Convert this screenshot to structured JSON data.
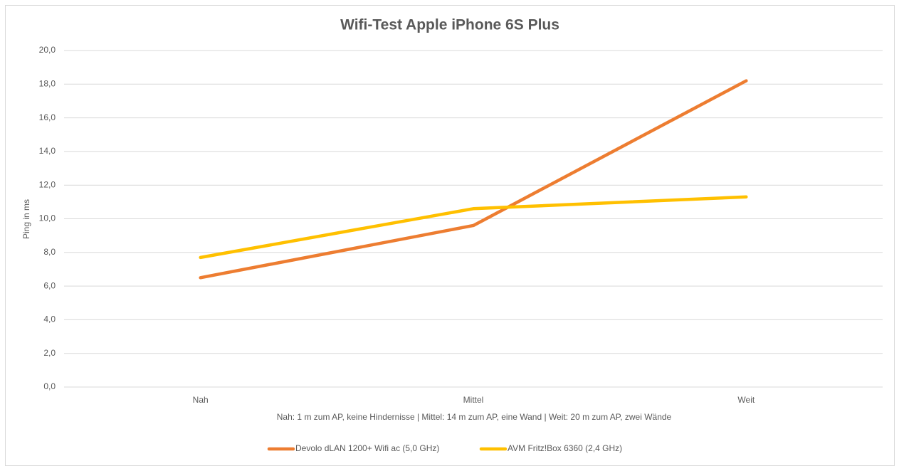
{
  "chart_data": {
    "type": "line",
    "title": "Wifi-Test Apple iPhone 6S Plus",
    "x_label": "Nah: 1 m zum AP, keine Hindernisse | Mittel: 14 m zum AP, eine Wand | Weit: 20 m zum AP, zwei Wände",
    "y_label": "Ping in ms",
    "categories": [
      "Nah",
      "Mittel",
      "Weit"
    ],
    "series": [
      {
        "name": "Devolo dLAN 1200+ Wifi ac (5,0 GHz)",
        "color": "#ed7d31",
        "values": [
          6.5,
          9.6,
          18.2
        ]
      },
      {
        "name": "AVM Fritz!Box 6360 (2,4 GHz)",
        "color": "#ffc000",
        "values": [
          7.7,
          10.6,
          11.3
        ]
      }
    ],
    "ylim": [
      0,
      20
    ],
    "yticks": [
      {
        "value": 0,
        "label": "0,0"
      },
      {
        "value": 2,
        "label": "2,0"
      },
      {
        "value": 4,
        "label": "4,0"
      },
      {
        "value": 6,
        "label": "6,0"
      },
      {
        "value": 8,
        "label": "8,0"
      },
      {
        "value": 10,
        "label": "10,0"
      },
      {
        "value": 12,
        "label": "12,0"
      },
      {
        "value": 14,
        "label": "14,0"
      },
      {
        "value": 16,
        "label": "16,0"
      },
      {
        "value": 18,
        "label": "18,0"
      },
      {
        "value": 20,
        "label": "20,0"
      }
    ],
    "grid": true,
    "legend": "bottom"
  }
}
